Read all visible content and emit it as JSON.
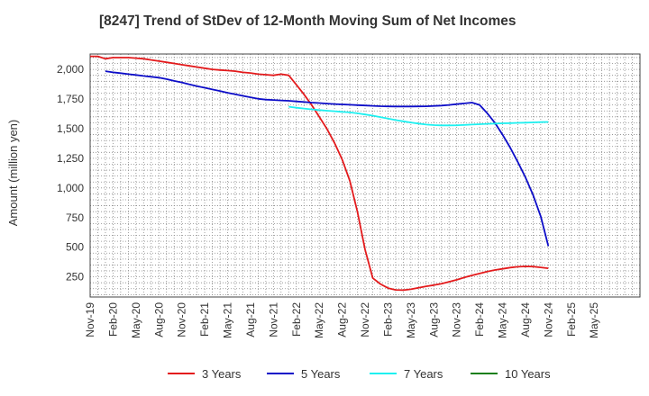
{
  "chart_data": {
    "type": "line",
    "title": "[8247]  Trend of StDev of 12-Month Moving Sum of Net Incomes",
    "ylabel": "Amount (million yen)",
    "xlabel": "",
    "ylim": [
      80,
      2130
    ],
    "yticks": [
      250,
      500,
      750,
      1000,
      1250,
      1500,
      1750,
      2000
    ],
    "ytick_labels": [
      "250",
      "500",
      "750",
      "1,000",
      "1,250",
      "1,500",
      "1,750",
      "2,000"
    ],
    "x_start": "2019-11",
    "x_end": "2025-11",
    "xtick_labels": [
      "Nov-19",
      "Feb-20",
      "May-20",
      "Aug-20",
      "Nov-20",
      "Feb-21",
      "May-21",
      "Aug-21",
      "Nov-21",
      "Feb-22",
      "May-22",
      "Aug-22",
      "Nov-22",
      "Feb-23",
      "May-23",
      "Aug-23",
      "Nov-23",
      "Feb-24",
      "May-24",
      "Aug-24",
      "Nov-24",
      "Feb-25",
      "May-25"
    ],
    "grid": true,
    "legend_position": "bottom",
    "series": [
      {
        "name": "3 Years",
        "color": "#e31a1c",
        "x": [
          "2019-11",
          "2019-12",
          "2020-01",
          "2020-02",
          "2020-03",
          "2020-04",
          "2020-05",
          "2020-06",
          "2020-07",
          "2020-08",
          "2020-09",
          "2020-10",
          "2020-11",
          "2020-12",
          "2021-01",
          "2021-02",
          "2021-03",
          "2021-04",
          "2021-05",
          "2021-06",
          "2021-07",
          "2021-08",
          "2021-09",
          "2021-10",
          "2021-11",
          "2021-12",
          "2022-01",
          "2022-02",
          "2022-03",
          "2022-04",
          "2022-05",
          "2022-06",
          "2022-07",
          "2022-08",
          "2022-09",
          "2022-10",
          "2022-11",
          "2022-12",
          "2023-01",
          "2023-02",
          "2023-03",
          "2023-04",
          "2023-05",
          "2023-06",
          "2023-07",
          "2023-08",
          "2023-09",
          "2023-10",
          "2023-11",
          "2023-12",
          "2024-01",
          "2024-02",
          "2024-03",
          "2024-04",
          "2024-05",
          "2024-06",
          "2024-07",
          "2024-08",
          "2024-09",
          "2024-10",
          "2024-11"
        ],
        "values": [
          2110,
          2110,
          2090,
          2100,
          2100,
          2100,
          2095,
          2090,
          2080,
          2070,
          2060,
          2050,
          2040,
          2030,
          2020,
          2010,
          2000,
          1995,
          1990,
          1985,
          1975,
          1970,
          1960,
          1955,
          1950,
          1960,
          1950,
          1870,
          1790,
          1700,
          1600,
          1500,
          1380,
          1240,
          1060,
          800,
          480,
          240,
          190,
          155,
          140,
          138,
          145,
          158,
          170,
          180,
          192,
          208,
          225,
          245,
          262,
          278,
          295,
          308,
          318,
          328,
          335,
          338,
          337,
          330,
          322
        ]
      },
      {
        "name": "5 Years",
        "color": "#0d0dc8",
        "x": [
          "2020-01",
          "2020-02",
          "2020-03",
          "2020-04",
          "2020-05",
          "2020-06",
          "2020-07",
          "2020-08",
          "2020-09",
          "2020-10",
          "2020-11",
          "2020-12",
          "2021-01",
          "2021-02",
          "2021-03",
          "2021-04",
          "2021-05",
          "2021-06",
          "2021-07",
          "2021-08",
          "2021-09",
          "2021-10",
          "2021-11",
          "2021-12",
          "2022-01",
          "2022-02",
          "2022-03",
          "2022-04",
          "2022-05",
          "2022-06",
          "2022-07",
          "2022-08",
          "2022-09",
          "2022-10",
          "2022-11",
          "2022-12",
          "2023-01",
          "2023-02",
          "2023-03",
          "2023-04",
          "2023-05",
          "2023-06",
          "2023-07",
          "2023-08",
          "2023-09",
          "2023-10",
          "2023-11",
          "2023-12",
          "2024-01",
          "2024-02",
          "2024-03",
          "2024-04",
          "2024-05",
          "2024-06",
          "2024-07",
          "2024-08",
          "2024-09",
          "2024-10",
          "2024-11"
        ],
        "values": [
          1985,
          1975,
          1968,
          1960,
          1953,
          1945,
          1938,
          1930,
          1918,
          1903,
          1890,
          1873,
          1858,
          1845,
          1831,
          1818,
          1803,
          1790,
          1777,
          1765,
          1752,
          1745,
          1742,
          1738,
          1735,
          1730,
          1725,
          1720,
          1716,
          1712,
          1708,
          1705,
          1702,
          1699,
          1696,
          1693,
          1690,
          1688,
          1687,
          1687,
          1687,
          1688,
          1689,
          1692,
          1695,
          1700,
          1707,
          1713,
          1720,
          1700,
          1630,
          1550,
          1450,
          1340,
          1220,
          1090,
          940,
          760,
          510
        ]
      },
      {
        "name": "7 Years",
        "color": "#1ef0f0",
        "x": [
          "2022-01",
          "2022-02",
          "2022-03",
          "2022-04",
          "2022-05",
          "2022-06",
          "2022-07",
          "2022-08",
          "2022-09",
          "2022-10",
          "2022-11",
          "2022-12",
          "2023-01",
          "2023-02",
          "2023-03",
          "2023-04",
          "2023-05",
          "2023-06",
          "2023-07",
          "2023-08",
          "2023-09",
          "2023-10",
          "2023-11",
          "2023-12",
          "2024-01",
          "2024-02",
          "2024-03",
          "2024-04",
          "2024-05",
          "2024-06",
          "2024-07",
          "2024-08",
          "2024-09",
          "2024-10",
          "2024-11"
        ],
        "values": [
          1685,
          1677,
          1670,
          1663,
          1657,
          1652,
          1647,
          1642,
          1637,
          1630,
          1620,
          1610,
          1598,
          1585,
          1573,
          1562,
          1552,
          1543,
          1535,
          1530,
          1528,
          1528,
          1529,
          1532,
          1535,
          1538,
          1541,
          1543,
          1545,
          1547,
          1549,
          1551,
          1553,
          1555,
          1557
        ]
      },
      {
        "name": "10 Years",
        "color": "#1a7f1a",
        "x": [],
        "values": []
      }
    ]
  }
}
